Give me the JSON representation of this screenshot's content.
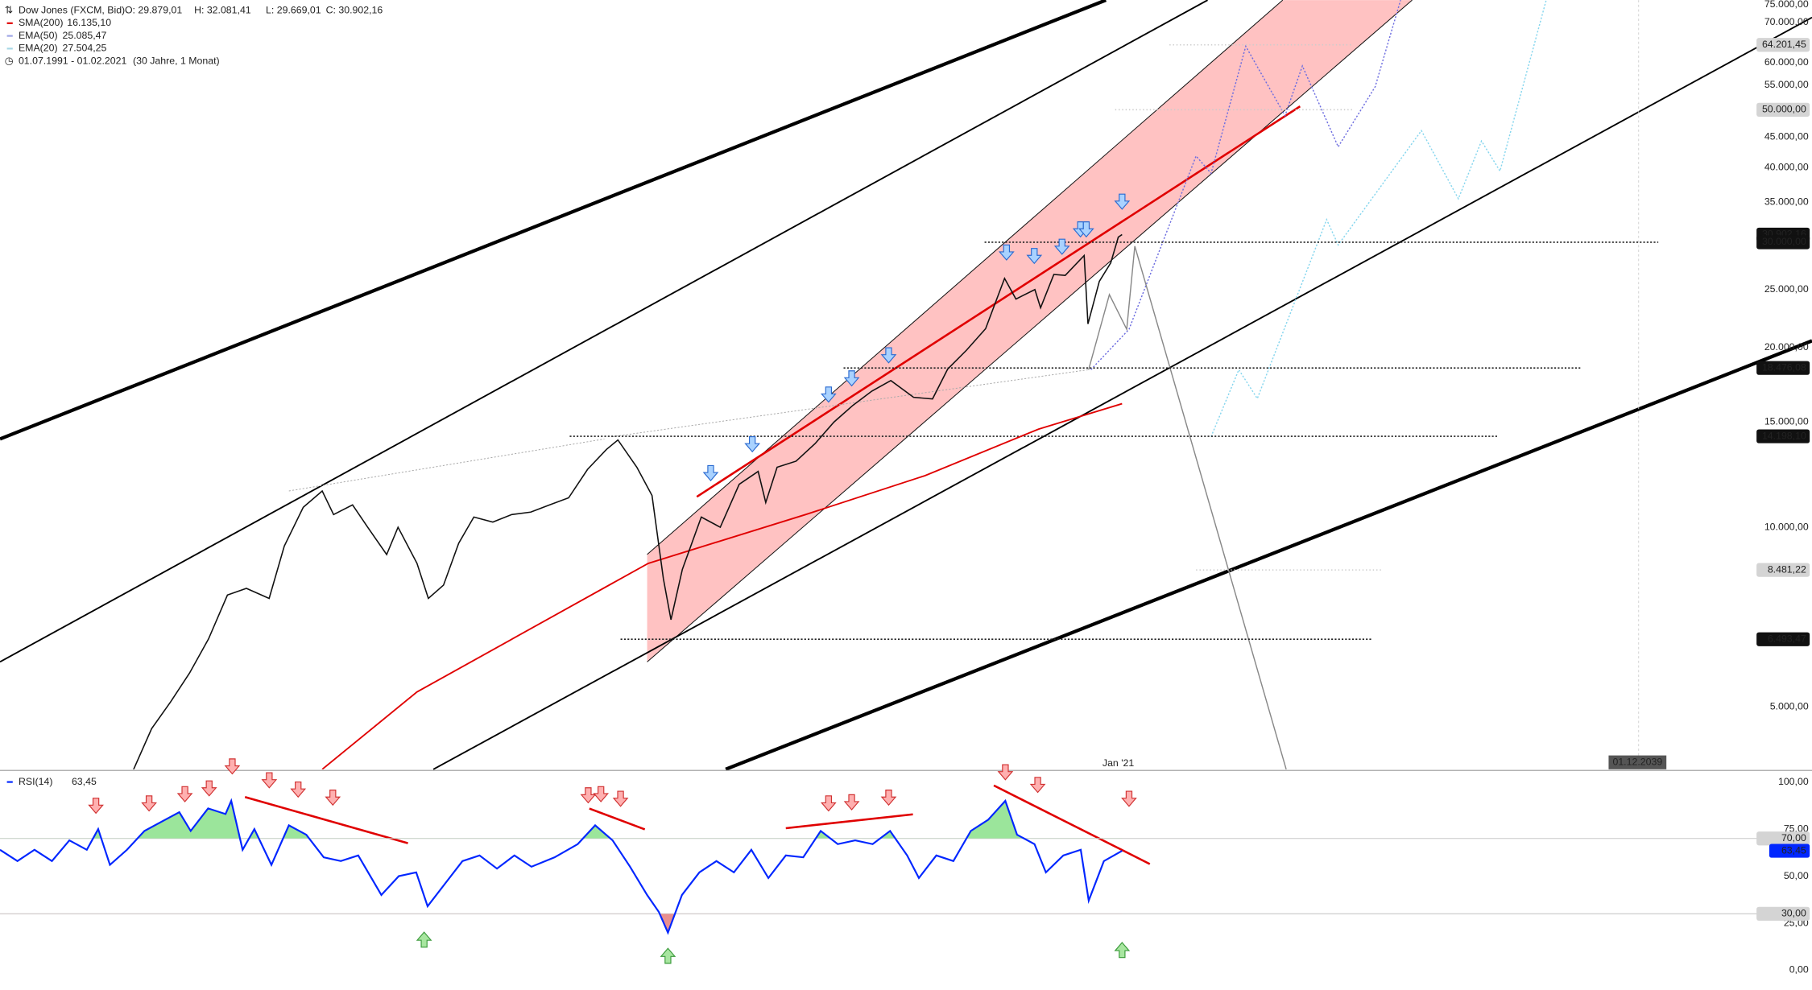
{
  "chart_data": [
    {
      "type": "line",
      "title": "Dow Jones (FXCM, Bid)",
      "ohlc_labels": [
        "O: 29.879,01",
        "H: 32.081,41",
        "L: 29.669,01",
        "C: 30.902,16"
      ],
      "period": "01.07.1991 - 01.02.2021",
      "period_note": "(30 Jahre, 1 Monat)",
      "log_scale": true,
      "grid": false,
      "color": "#111111",
      "xlim": [
        1991.5,
        2039.3
      ],
      "xticks": [
        {
          "value": 2021,
          "label": "Jan '21"
        }
      ],
      "ylim": [
        3933,
        76300
      ],
      "yticks": [
        {
          "value": 5000,
          "label": "5.000,00"
        },
        {
          "value": 10000,
          "label": "10.000,00"
        },
        {
          "value": 15000,
          "label": "15.000,00"
        },
        {
          "value": 20000,
          "label": "20.000,00"
        },
        {
          "value": 25000,
          "label": "25.000,00"
        },
        {
          "value": 35000,
          "label": "35.000,00"
        },
        {
          "value": 40000,
          "label": "40.000,00"
        },
        {
          "value": 45000,
          "label": "45.000,00"
        },
        {
          "value": 55000,
          "label": "55.000,00"
        },
        {
          "value": 60000,
          "label": "60.000,00"
        },
        {
          "value": 70000,
          "label": "70.000,00"
        },
        {
          "value": 75000,
          "label": "75.000,00"
        }
      ],
      "x": [
        1991.5,
        1992,
        1993,
        1994,
        1995,
        1995.5,
        1996,
        1996.5,
        1997,
        1997.5,
        1998,
        1998.6,
        1999,
        1999.5,
        2000,
        2000.3,
        2000.8,
        2001.2,
        2001.7,
        2002,
        2002.5,
        2002.8,
        2003.2,
        2003.6,
        2004,
        2004.5,
        2005,
        2005.5,
        2006,
        2006.5,
        2007,
        2007.5,
        2007.8,
        2008.3,
        2008.7,
        2009,
        2009.2,
        2009.5,
        2010,
        2010.5,
        2011,
        2011.5,
        2011.7,
        2012,
        2012.5,
        2013,
        2013.5,
        2014,
        2014.5,
        2015,
        2015.6,
        2016.1,
        2016.5,
        2017,
        2017.5,
        2018,
        2018.3,
        2018.8,
        2018.95,
        2019.3,
        2019.6,
        2020.1,
        2020.2,
        2020.5,
        2020.8,
        2021,
        2021.1
      ],
      "values": [
        3000,
        3300,
        3300,
        3800,
        3900,
        4600,
        5100,
        5700,
        6500,
        7700,
        7900,
        7600,
        9300,
        10800,
        11500,
        10500,
        10900,
        10000,
        9000,
        10000,
        8700,
        7600,
        8000,
        9400,
        10400,
        10200,
        10500,
        10600,
        10900,
        11200,
        12500,
        13500,
        14000,
        12600,
        11300,
        8200,
        7000,
        8500,
        10400,
        10000,
        11800,
        12400,
        11000,
        12600,
        12900,
        13800,
        15000,
        16000,
        16900,
        17600,
        16500,
        16400,
        18400,
        19800,
        21500,
        26100,
        24100,
        25000,
        23300,
        26500,
        26400,
        28500,
        21900,
        25800,
        27700,
        30600,
        30902
      ],
      "series": [
        {
          "name": "SMA(200)",
          "color": "#e00000",
          "legend_value": "16.135,10",
          "x": [
            2000,
            2002.5,
            2005.2,
            2008.6,
            2012.75,
            2015.9,
            2018.9,
            2021.1
          ],
          "values": [
            3933,
            5300,
            6600,
            8700,
            10500,
            12200,
            14600,
            16100
          ]
        },
        {
          "name": "EMA(50)",
          "color": "#9ea6e6",
          "legend_value": "25.085,47"
        },
        {
          "name": "EMA(20)",
          "color": "#a6d8e6",
          "legend_value": "27.504,25"
        }
      ],
      "levels": [
        {
          "value": 64201.45,
          "label": "64.201,45",
          "color": "#d4d4d4"
        },
        {
          "value": 50000,
          "label": "50.000,00",
          "color": "#d4d4d4"
        },
        {
          "value": 30902.16,
          "label": "30.902,16",
          "color": "#111111"
        },
        {
          "value": 30000,
          "label": "30.000,00",
          "color": "#111111"
        },
        {
          "value": 18476.08,
          "label": "18.476,08",
          "color": "#111111"
        },
        {
          "value": 14198.1,
          "label": "14.198,10",
          "color": "#111111"
        },
        {
          "value": 8481.22,
          "label": "8.481,22",
          "color": "#d4d4d4"
        },
        {
          "value": 6493.47,
          "label": "6.493,47",
          "color": "#111111"
        }
      ],
      "crosshair_date": "01.12.2039"
    },
    {
      "type": "line",
      "title": "RSI(14)",
      "value_label": "63,45",
      "color": "#0026ff",
      "xlim": [
        1991.5,
        2039.3
      ],
      "ylim": [
        0,
        100
      ],
      "yticks": [
        {
          "value": 0,
          "label": "0,00"
        },
        {
          "value": 25,
          "label": "25,00"
        },
        {
          "value": 50,
          "label": "50,00"
        },
        {
          "value": 75,
          "label": "75,00"
        },
        {
          "value": 100,
          "label": "100,00"
        }
      ],
      "levels": [
        {
          "value": 70,
          "label": "70,00",
          "color": "#d4d4d4"
        },
        {
          "value": 30,
          "label": "30,00",
          "color": "#d4d4d4"
        }
      ],
      "x": [
        1991.5,
        1991.96,
        1992.41,
        1992.87,
        1993.33,
        1993.79,
        1994.09,
        1994.4,
        1994.85,
        1995.31,
        1995.77,
        1996.23,
        1996.53,
        1996.99,
        1997.45,
        1997.6,
        1997.9,
        1998.21,
        1998.66,
        1999.12,
        1999.58,
        2000.04,
        2000.49,
        2000.95,
        2001.56,
        2002.02,
        2002.48,
        2002.78,
        2003.24,
        2003.7,
        2004.15,
        2004.61,
        2005.07,
        2005.52,
        2006.13,
        2006.74,
        2007.2,
        2007.66,
        2008.12,
        2008.57,
        2008.88,
        2009.12,
        2009.49,
        2009.95,
        2010.4,
        2010.86,
        2011.32,
        2011.77,
        2012.23,
        2012.69,
        2013.15,
        2013.6,
        2014.06,
        2014.52,
        2014.98,
        2015.43,
        2015.74,
        2016.2,
        2016.65,
        2017.11,
        2017.57,
        2018.02,
        2018.33,
        2018.79,
        2019.09,
        2019.55,
        2020.01,
        2020.22,
        2020.62,
        2021.1
      ],
      "values": [
        64,
        58,
        64,
        58,
        69,
        64,
        75,
        56,
        64,
        74,
        79,
        84,
        74,
        86,
        83,
        90,
        64,
        75,
        56,
        77,
        72,
        60,
        58,
        61,
        40,
        50,
        52,
        34,
        46,
        58,
        61,
        54,
        61,
        55,
        60,
        67,
        77,
        69,
        55,
        40,
        31,
        20,
        40,
        52,
        58,
        52,
        64,
        49,
        61,
        60,
        74,
        67,
        69,
        67,
        74,
        61,
        49,
        61,
        58,
        74,
        80,
        90,
        72,
        67,
        52,
        61,
        64,
        37,
        58,
        63.45
      ]
    }
  ]
}
